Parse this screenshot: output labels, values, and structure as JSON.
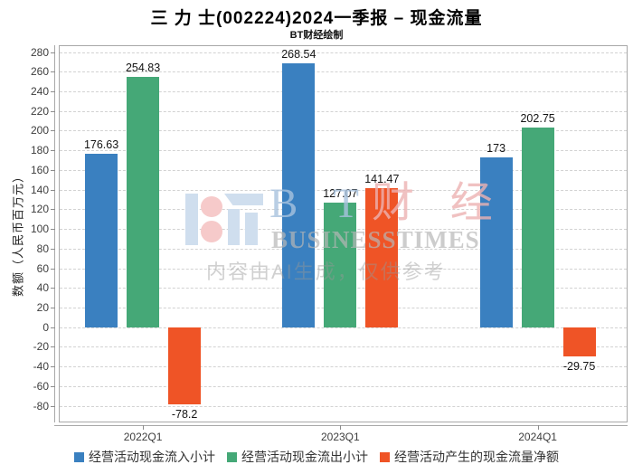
{
  "chart_data": {
    "type": "bar",
    "title": "三 力 士(002224)2024一季报 – 现金流量",
    "subtitle": "BT财经绘制",
    "categories": [
      "2022Q1",
      "2023Q1",
      "2024Q1"
    ],
    "series": [
      {
        "name": "经营活动现金流入小计",
        "color": "#3a80c0",
        "values": [
          176.63,
          268.54,
          173
        ],
        "labels": [
          "176.63",
          "268.54",
          "173"
        ]
      },
      {
        "name": "经营活动现金流出小计",
        "color": "#45a877",
        "values": [
          254.83,
          127.07,
          202.75
        ],
        "labels": [
          "254.83",
          "127.07",
          "202.75"
        ]
      },
      {
        "name": "经营活动产生的现金流量净额",
        "color": "#ef5426",
        "values": [
          -78.2,
          141.47,
          -29.75
        ],
        "labels": [
          "-78.2",
          "141.47",
          "-29.75"
        ]
      }
    ],
    "xlabel": "",
    "ylabel": "数额（人民币百万元）",
    "ylim": [
      -97,
      287
    ],
    "yticks_range": [
      -80,
      280
    ],
    "ytick_step": 20,
    "grid": true,
    "legend_position": "bottom"
  },
  "watermark": {
    "brand_bt": "B T",
    "brand_cn": "财 经",
    "brand_en": "BUSINESSTIMES",
    "ai_note": "内容由AI生成，仅供参考"
  }
}
